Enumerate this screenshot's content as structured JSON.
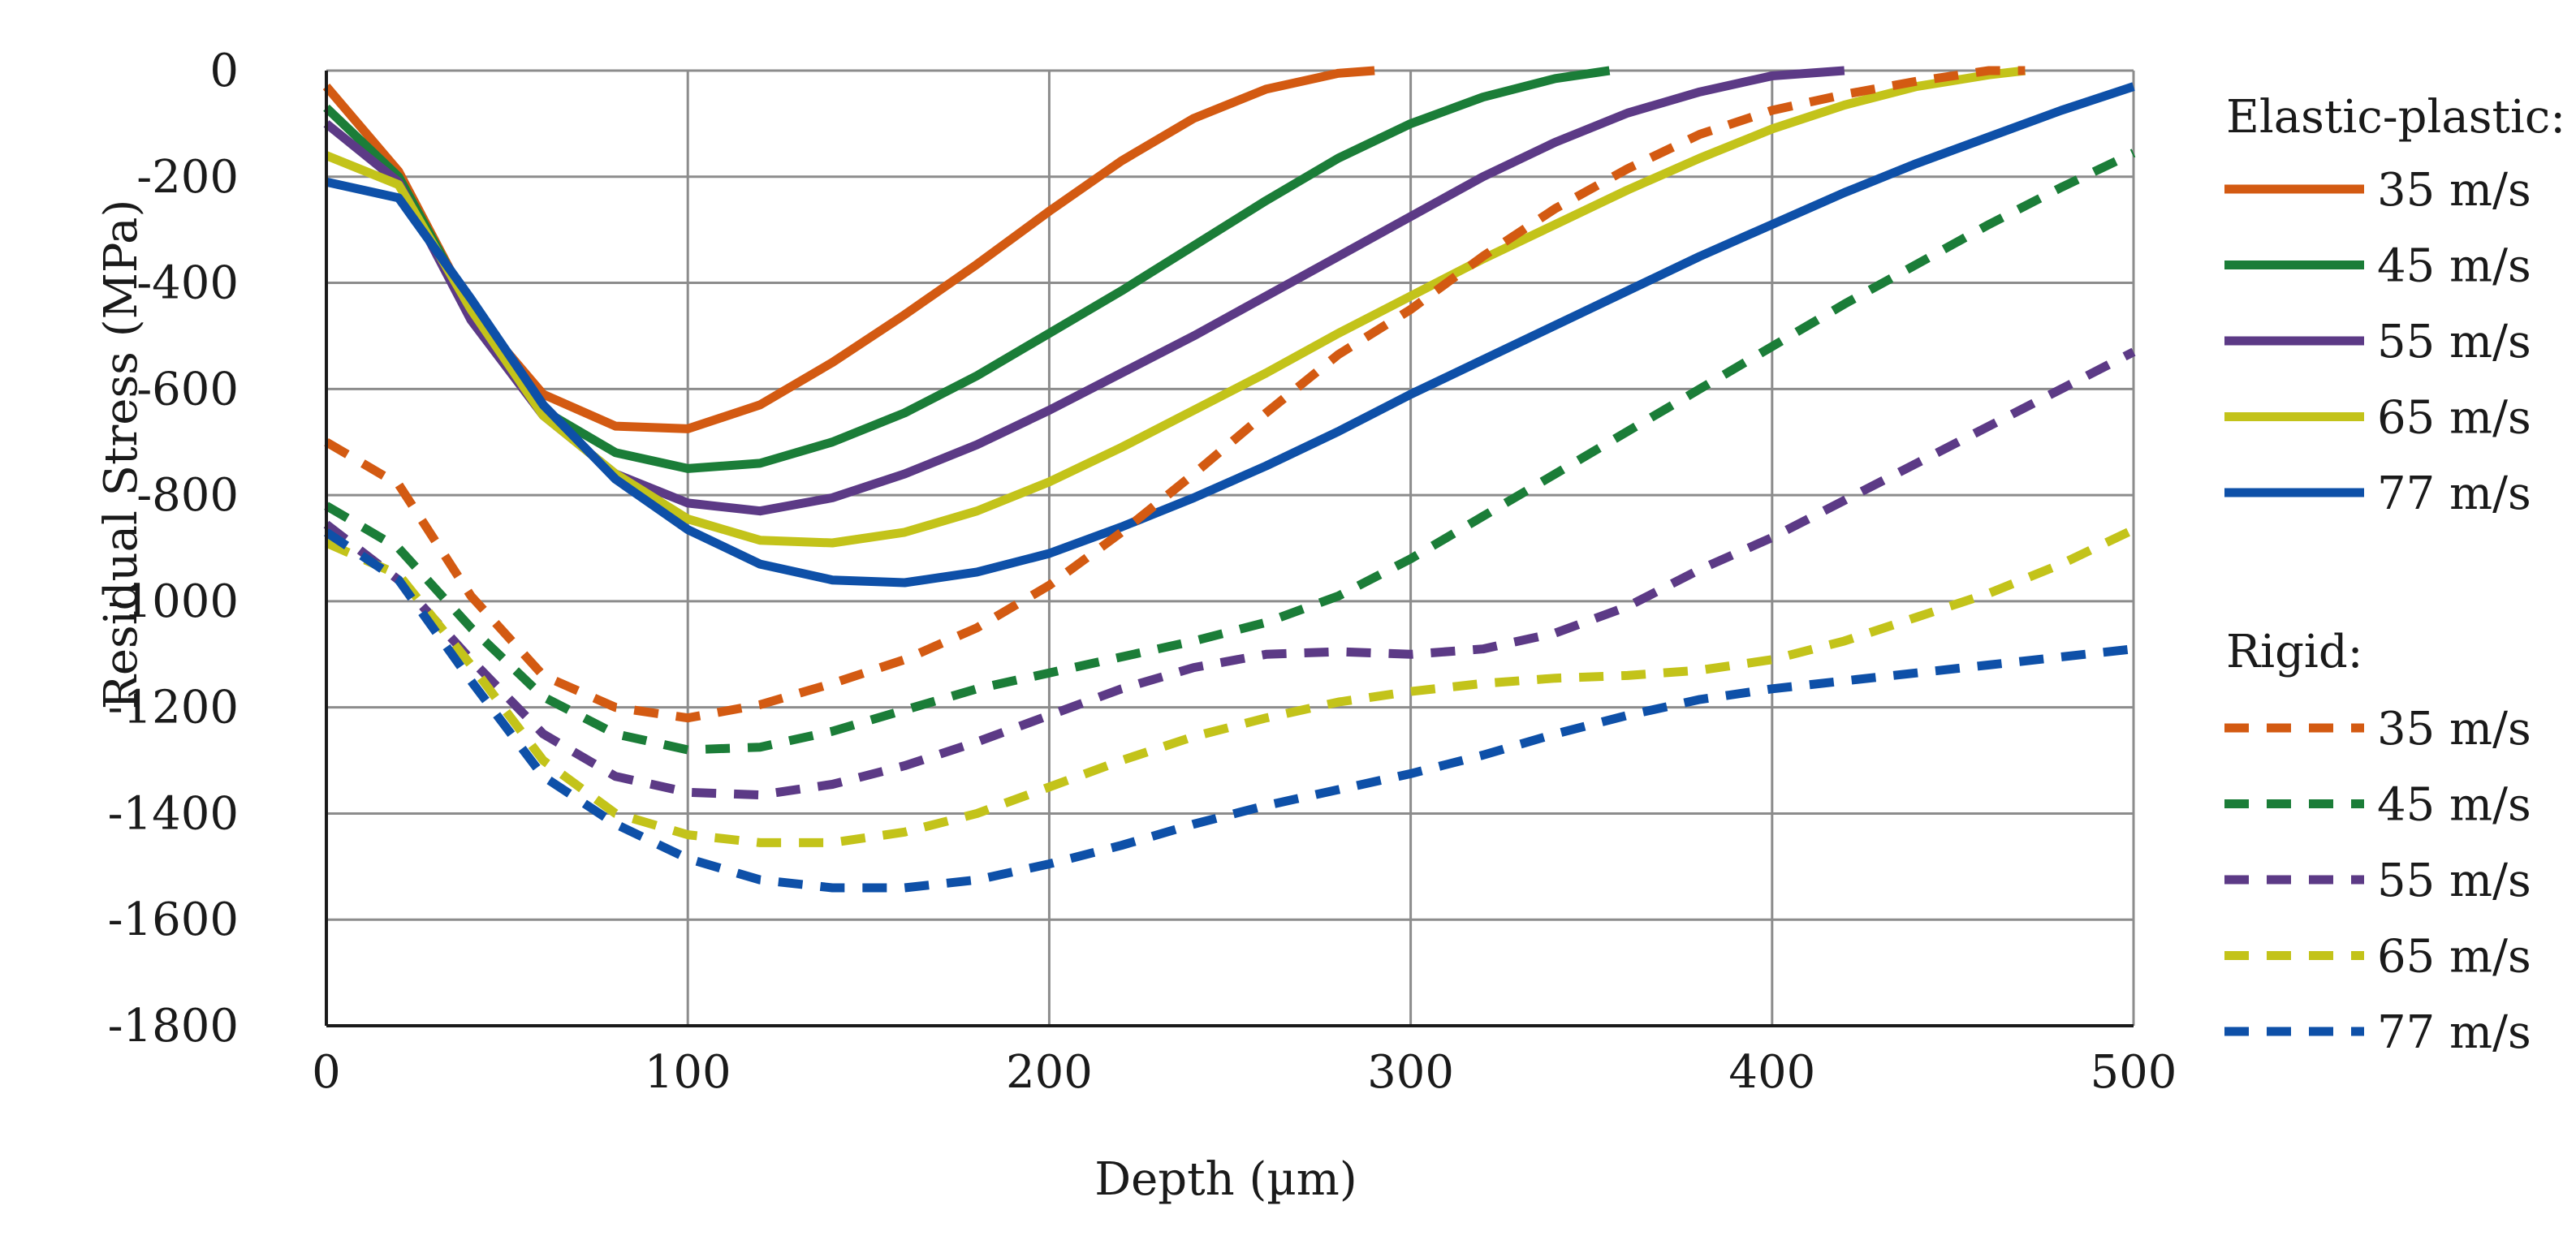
{
  "chart_data": {
    "type": "line",
    "title": "",
    "xlabel": "Depth (µm)",
    "ylabel": "Residual Stress (MPa)",
    "xlim": [
      0,
      500
    ],
    "ylim": [
      -1800,
      0
    ],
    "xticks": [
      0,
      100,
      200,
      300,
      400,
      500
    ],
    "yticks": [
      0,
      -200,
      -400,
      -600,
      -800,
      -1000,
      -1200,
      -1400,
      -1600,
      -1800
    ],
    "xtick_labels": [
      "0",
      "100",
      "200",
      "300",
      "400",
      "500"
    ],
    "ytick_labels": [
      "0",
      "-200",
      "-400",
      "-600",
      "-800",
      "-1000",
      "-1200",
      "-1400",
      "-1600",
      "-1800"
    ],
    "grid": true,
    "legend_position": "right",
    "legend_groups": [
      {
        "heading": "Elastic-plastic:",
        "style": "solid"
      },
      {
        "heading": "Rigid:",
        "style": "dashed"
      }
    ],
    "colors": {
      "35 m/s": "#d35a12",
      "45 m/s": "#1b7d38",
      "55 m/s": "#5c3a86",
      "65 m/s": "#c3c31a",
      "77 m/s": "#0e50a8"
    },
    "series": [
      {
        "group": "Elastic-plastic:",
        "name": "35 m/s",
        "style": "solid",
        "x": [
          0,
          20,
          40,
          60,
          80,
          100,
          120,
          140,
          160,
          180,
          200,
          220,
          240,
          260,
          280,
          290
        ],
        "y": [
          -30,
          -190,
          -450,
          -610,
          -670,
          -675,
          -630,
          -550,
          -460,
          -365,
          -265,
          -170,
          -90,
          -35,
          -5,
          0
        ]
      },
      {
        "group": "Elastic-plastic:",
        "name": "45 m/s",
        "style": "solid",
        "x": [
          0,
          20,
          40,
          60,
          80,
          100,
          120,
          140,
          160,
          180,
          200,
          220,
          240,
          260,
          280,
          300,
          320,
          340,
          355
        ],
        "y": [
          -70,
          -200,
          -450,
          -640,
          -720,
          -750,
          -740,
          -700,
          -645,
          -575,
          -495,
          -415,
          -330,
          -245,
          -165,
          -100,
          -50,
          -15,
          0
        ]
      },
      {
        "group": "Elastic-plastic:",
        "name": "55 m/s",
        "style": "solid",
        "x": [
          0,
          20,
          40,
          60,
          80,
          100,
          120,
          140,
          160,
          180,
          200,
          220,
          240,
          260,
          280,
          300,
          320,
          340,
          360,
          380,
          400,
          420
        ],
        "y": [
          -100,
          -210,
          -470,
          -650,
          -760,
          -815,
          -830,
          -805,
          -760,
          -705,
          -640,
          -570,
          -500,
          -425,
          -350,
          -275,
          -200,
          -135,
          -80,
          -40,
          -10,
          0
        ]
      },
      {
        "group": "Elastic-plastic:",
        "name": "65 m/s",
        "style": "solid",
        "x": [
          0,
          20,
          40,
          60,
          80,
          100,
          120,
          140,
          160,
          180,
          200,
          220,
          240,
          260,
          280,
          300,
          320,
          340,
          360,
          380,
          400,
          420,
          440,
          460,
          470
        ],
        "y": [
          -160,
          -215,
          -450,
          -650,
          -760,
          -845,
          -885,
          -890,
          -870,
          -830,
          -775,
          -710,
          -640,
          -570,
          -495,
          -425,
          -355,
          -290,
          -225,
          -165,
          -110,
          -65,
          -30,
          -8,
          0
        ]
      },
      {
        "group": "Elastic-plastic:",
        "name": "77 m/s",
        "style": "solid",
        "x": [
          0,
          20,
          40,
          60,
          80,
          100,
          120,
          140,
          160,
          180,
          200,
          220,
          240,
          260,
          280,
          300,
          320,
          340,
          360,
          380,
          400,
          420,
          440,
          460,
          480,
          500
        ],
        "y": [
          -210,
          -240,
          -430,
          -630,
          -770,
          -865,
          -930,
          -960,
          -965,
          -945,
          -910,
          -860,
          -805,
          -745,
          -680,
          -610,
          -545,
          -480,
          -415,
          -350,
          -290,
          -230,
          -175,
          -125,
          -75,
          -30
        ]
      },
      {
        "group": "Rigid:",
        "name": "35 m/s",
        "style": "dashed",
        "x": [
          0,
          20,
          40,
          60,
          80,
          100,
          120,
          140,
          160,
          180,
          200,
          220,
          240,
          260,
          280,
          300,
          320,
          340,
          360,
          380,
          400,
          420,
          440,
          460,
          470
        ],
        "y": [
          -700,
          -780,
          -990,
          -1140,
          -1200,
          -1220,
          -1195,
          -1155,
          -1110,
          -1050,
          -970,
          -870,
          -760,
          -645,
          -535,
          -450,
          -350,
          -260,
          -185,
          -120,
          -75,
          -45,
          -20,
          0,
          0
        ]
      },
      {
        "group": "Rigid:",
        "name": "45 m/s",
        "style": "dashed",
        "x": [
          0,
          20,
          40,
          60,
          80,
          100,
          120,
          140,
          160,
          180,
          200,
          220,
          240,
          260,
          280,
          300,
          320,
          340,
          360,
          380,
          400,
          420,
          440,
          460,
          480,
          500
        ],
        "y": [
          -820,
          -900,
          -1050,
          -1180,
          -1250,
          -1280,
          -1275,
          -1245,
          -1205,
          -1165,
          -1135,
          -1105,
          -1075,
          -1040,
          -990,
          -920,
          -840,
          -760,
          -680,
          -600,
          -520,
          -440,
          -365,
          -290,
          -220,
          -155
        ]
      },
      {
        "group": "Rigid:",
        "name": "55 m/s",
        "style": "dashed",
        "x": [
          0,
          20,
          40,
          60,
          80,
          100,
          120,
          140,
          160,
          180,
          200,
          220,
          240,
          260,
          280,
          300,
          320,
          340,
          360,
          380,
          400,
          420,
          440,
          460,
          480,
          500
        ],
        "y": [
          -855,
          -960,
          -1110,
          -1250,
          -1330,
          -1360,
          -1365,
          -1345,
          -1310,
          -1265,
          -1215,
          -1165,
          -1125,
          -1100,
          -1095,
          -1100,
          -1090,
          -1060,
          -1010,
          -940,
          -880,
          -810,
          -740,
          -670,
          -600,
          -530
        ]
      },
      {
        "group": "Rigid:",
        "name": "65 m/s",
        "style": "dashed",
        "x": [
          0,
          20,
          40,
          60,
          80,
          100,
          120,
          140,
          160,
          180,
          200,
          220,
          240,
          260,
          280,
          300,
          320,
          340,
          360,
          380,
          400,
          420,
          440,
          460,
          480,
          500
        ],
        "y": [
          -890,
          -950,
          -1120,
          -1300,
          -1400,
          -1440,
          -1455,
          -1455,
          -1435,
          -1400,
          -1350,
          -1300,
          -1255,
          -1220,
          -1190,
          -1170,
          -1155,
          -1145,
          -1140,
          -1130,
          -1110,
          -1075,
          -1030,
          -985,
          -930,
          -865
        ]
      },
      {
        "group": "Rigid:",
        "name": "77 m/s",
        "style": "dashed",
        "x": [
          0,
          20,
          40,
          60,
          80,
          100,
          120,
          140,
          160,
          180,
          200,
          220,
          240,
          260,
          280,
          300,
          320,
          340,
          360,
          380,
          400,
          420,
          440,
          460,
          480,
          500
        ],
        "y": [
          -870,
          -960,
          -1150,
          -1330,
          -1420,
          -1485,
          -1525,
          -1540,
          -1540,
          -1525,
          -1495,
          -1460,
          -1420,
          -1385,
          -1355,
          -1325,
          -1290,
          -1250,
          -1215,
          -1185,
          -1165,
          -1150,
          -1135,
          -1120,
          -1105,
          -1090
        ]
      }
    ]
  }
}
